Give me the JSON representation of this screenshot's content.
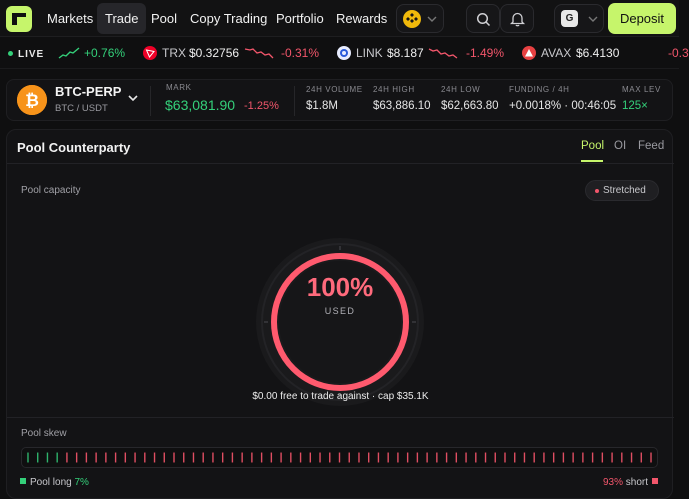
{
  "nav": {
    "items": [
      {
        "label": "Markets",
        "active": false
      },
      {
        "label": "Trade",
        "active": true
      },
      {
        "label": "Pool",
        "active": false
      },
      {
        "label": "Copy Trading",
        "active": false
      },
      {
        "label": "Portfolio",
        "active": false
      },
      {
        "label": "Rewards",
        "active": false
      }
    ],
    "account_initial": "G",
    "deposit_label": "Deposit",
    "icons": [
      "logo-icon",
      "bnb-chain-icon",
      "search-icon",
      "bell-icon",
      "chevron-down-icon"
    ],
    "colors": {
      "accent": "#c6f56b",
      "positive": "#34d07a",
      "negative": "#f2566b",
      "bnb": "#f0b90b"
    }
  },
  "ticker": {
    "live_label": "LIVE",
    "first_change": "+0.76%",
    "items": [
      {
        "symbol": "TRX",
        "price": "$0.32756",
        "change": "-0.31%"
      },
      {
        "symbol": "LINK",
        "price": "$8.187",
        "change": "-1.49%"
      },
      {
        "symbol": "AVAX",
        "price": "$6.4130",
        "change": "-0.3"
      }
    ]
  },
  "market": {
    "pair": "BTC-PERP",
    "quote": "BTC / USDT",
    "mark_label": "MARK",
    "mark_price": "$63,081.90",
    "mark_change": "-1.25%",
    "stats": [
      {
        "label": "24H VOLUME",
        "value": "$1.8M"
      },
      {
        "label": "24H HIGH",
        "value": "$63,886.10"
      },
      {
        "label": "24H LOW",
        "value": "$62,663.80"
      },
      {
        "label": "FUNDING / 4H",
        "value": "+0.0018% · 00:46:05"
      },
      {
        "label": "MAX LEV",
        "value": "125×"
      }
    ]
  },
  "panel": {
    "title": "Pool Counterparty",
    "tabs": [
      {
        "label": "Pool",
        "active": true
      },
      {
        "label": "OI",
        "active": false
      },
      {
        "label": "Feed",
        "active": false
      }
    ],
    "capacity_label": "Pool capacity",
    "status_badge": "Stretched",
    "gauge_value": "100%",
    "gauge_fraction": 1.0,
    "gauge_label": "USED",
    "free_text": "$0.00 free to trade against · cap $35.1K",
    "skew_label": "Pool skew",
    "long_label": "Pool long",
    "long_pct": "7%",
    "long_fraction": 0.07,
    "short_pct": "93%",
    "short_label": "short"
  }
}
